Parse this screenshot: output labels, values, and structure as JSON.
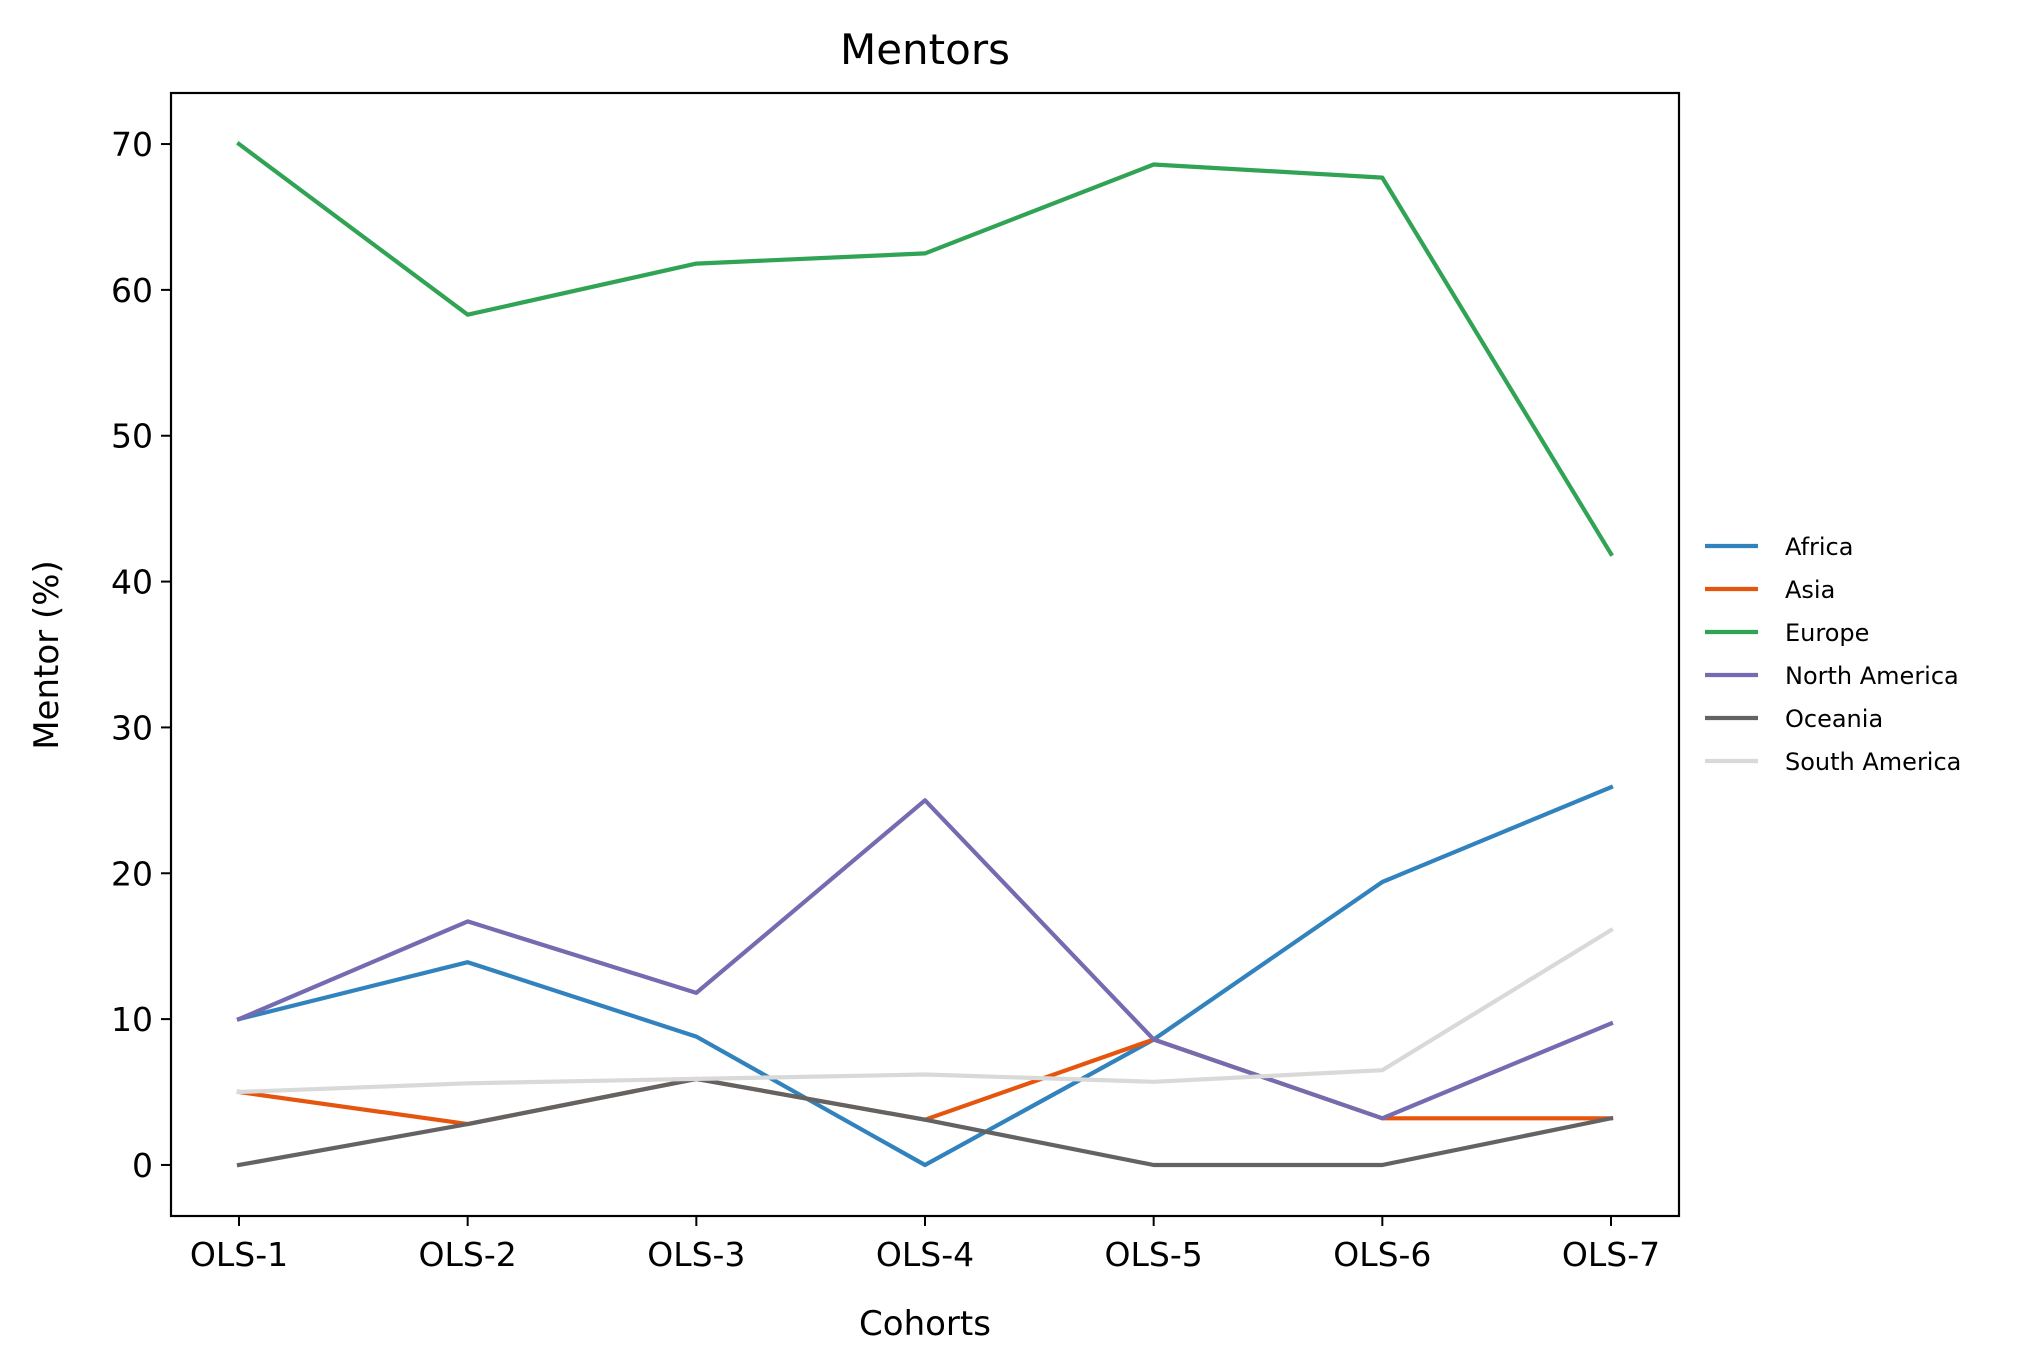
{
  "chart_data": {
    "type": "line",
    "title": "Mentors",
    "xlabel": "Cohorts",
    "ylabel": "Mentor (%)",
    "categories": [
      "OLS-1",
      "OLS-2",
      "OLS-3",
      "OLS-4",
      "OLS-5",
      "OLS-6",
      "OLS-7"
    ],
    "ylim": [
      -3.5,
      73.5
    ],
    "yticks": [
      0,
      10,
      20,
      30,
      40,
      50,
      60,
      70
    ],
    "grid": false,
    "legend_position": "center-right, outside plot",
    "series": [
      {
        "name": "Africa",
        "color": "#3182bd",
        "values": [
          10.0,
          13.9,
          8.8,
          0.0,
          8.6,
          19.4,
          25.9
        ]
      },
      {
        "name": "Asia",
        "color": "#e6550d",
        "values": [
          5.0,
          2.8,
          5.9,
          3.1,
          8.6,
          3.2,
          3.2
        ]
      },
      {
        "name": "Europe",
        "color": "#31a354",
        "values": [
          70.0,
          58.3,
          61.8,
          62.5,
          68.6,
          67.7,
          41.9
        ]
      },
      {
        "name": "North America",
        "color": "#756bb1",
        "values": [
          10.0,
          16.7,
          11.8,
          25.0,
          8.6,
          3.2,
          9.7
        ]
      },
      {
        "name": "Oceania",
        "color": "#636363",
        "values": [
          0.0,
          2.8,
          5.9,
          3.1,
          0.0,
          0.0,
          3.2
        ]
      },
      {
        "name": "South America",
        "color": "#d9d9d9",
        "values": [
          5.0,
          5.6,
          5.9,
          6.2,
          5.7,
          6.5,
          16.1
        ]
      }
    ]
  }
}
